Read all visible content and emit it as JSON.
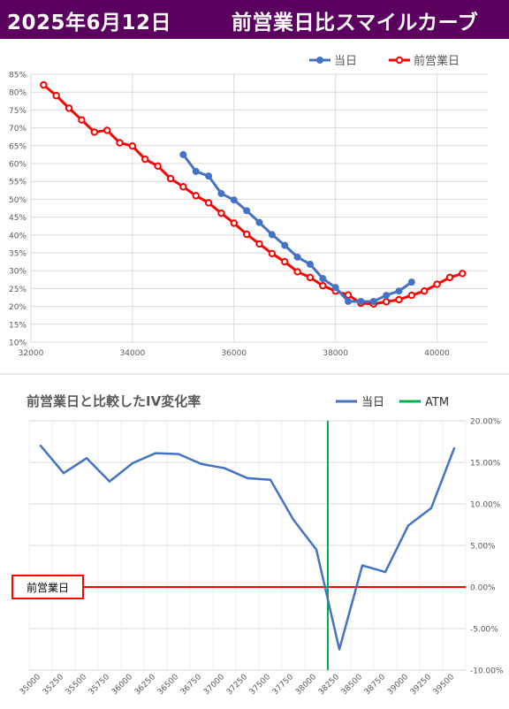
{
  "header": {
    "date": "2025年6月12日",
    "title": "前営業日比スマイルカーブ"
  },
  "chart_data": [
    {
      "type": "line",
      "title": "",
      "xlim": [
        32000,
        41000
      ],
      "ylim": [
        10,
        85
      ],
      "x_ticks": [
        32000,
        34000,
        36000,
        38000,
        40000
      ],
      "y_ticks": [
        10,
        15,
        20,
        25,
        30,
        35,
        40,
        45,
        50,
        55,
        60,
        65,
        70,
        75,
        80,
        85
      ],
      "y_tick_labels": [
        "10%",
        "15%",
        "20%",
        "25%",
        "30%",
        "35%",
        "40%",
        "45%",
        "50%",
        "55%",
        "60%",
        "65%",
        "70%",
        "75%",
        "80%",
        "85%"
      ],
      "legend_position": "top-right",
      "grid": true,
      "series": [
        {
          "name": "当日",
          "color": "#4472c4",
          "points": [
            [
              35000,
              62.5
            ],
            [
              35250,
              57.8
            ],
            [
              35500,
              56.5
            ],
            [
              35750,
              51.6
            ],
            [
              36000,
              49.8
            ],
            [
              36250,
              46.8
            ],
            [
              36500,
              43.5
            ],
            [
              36750,
              40.1
            ],
            [
              37000,
              37.1
            ],
            [
              37250,
              33.8
            ],
            [
              37500,
              31.8
            ],
            [
              37750,
              27.8
            ],
            [
              38000,
              25.3
            ],
            [
              38250,
              21.4
            ],
            [
              38500,
              21.4
            ],
            [
              38750,
              21.4
            ],
            [
              39000,
              23.1
            ],
            [
              39250,
              24.3
            ],
            [
              39500,
              26.8
            ]
          ]
        },
        {
          "name": "前営業日",
          "color": "#ff0000",
          "points": [
            [
              32250,
              82.0
            ],
            [
              32500,
              79.0
            ],
            [
              32750,
              75.5
            ],
            [
              33000,
              72.2
            ],
            [
              33250,
              68.8
            ],
            [
              33500,
              69.3
            ],
            [
              33750,
              65.8
            ],
            [
              34000,
              64.9
            ],
            [
              34250,
              61.2
            ],
            [
              34500,
              59.3
            ],
            [
              34750,
              55.8
            ],
            [
              35000,
              53.5
            ],
            [
              35250,
              51.0
            ],
            [
              35500,
              49.0
            ],
            [
              35750,
              46.1
            ],
            [
              36000,
              43.3
            ],
            [
              36250,
              40.2
            ],
            [
              36500,
              37.5
            ],
            [
              36750,
              34.8
            ],
            [
              37000,
              32.5
            ],
            [
              37250,
              29.7
            ],
            [
              37500,
              28.1
            ],
            [
              37750,
              25.8
            ],
            [
              38000,
              24.3
            ],
            [
              38250,
              23.2
            ],
            [
              38500,
              20.9
            ],
            [
              38750,
              20.7
            ],
            [
              39000,
              21.3
            ],
            [
              39250,
              21.9
            ],
            [
              39500,
              23.1
            ],
            [
              39750,
              24.3
            ],
            [
              40000,
              26.2
            ],
            [
              40250,
              28.1
            ],
            [
              40500,
              29.2
            ]
          ]
        }
      ]
    },
    {
      "type": "line",
      "title": "前営業日と比較したIV変化率",
      "categories": [
        "35000",
        "35250",
        "35500",
        "35750",
        "36000",
        "36250",
        "36500",
        "36750",
        "37000",
        "37250",
        "37500",
        "37750",
        "38000",
        "38250",
        "38500",
        "38750",
        "39000",
        "39250",
        "39500"
      ],
      "ylim": [
        -10,
        20
      ],
      "y_ticks": [
        -10,
        -5,
        0,
        5,
        10,
        15,
        20
      ],
      "y_tick_labels": [
        "-10.00%",
        "-5.00%",
        "0.00%",
        "5.00%",
        "10.00%",
        "15.00%",
        "20.00%"
      ],
      "legend_position": "top-right",
      "grid": true,
      "series": [
        {
          "name": "当日",
          "color": "#4472c4",
          "values": [
            17.0,
            13.7,
            15.5,
            12.7,
            14.9,
            16.1,
            16.0,
            14.8,
            14.3,
            13.1,
            12.9,
            8.1,
            4.5,
            -7.5,
            2.6,
            1.8,
            7.4,
            9.5,
            16.7
          ]
        }
      ],
      "atm": {
        "name": "ATM",
        "color": "#00b050",
        "position": 38125
      },
      "zero_line": {
        "label": "前営業日",
        "color": "#ff0000",
        "value": 0
      }
    }
  ]
}
